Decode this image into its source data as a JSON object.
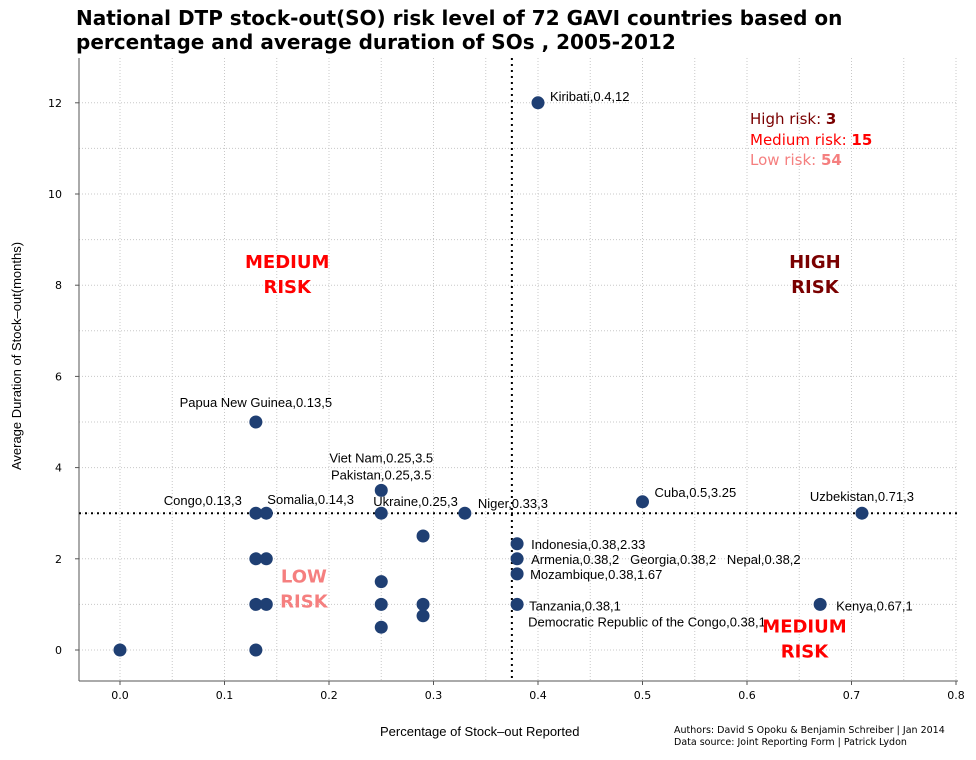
{
  "title_line1": "National DTP stock-out(SO) risk level of 72 GAVI countries based on",
  "title_line2": "percentage  and average duration of SOs , 2005-2012",
  "xlabel": "Percentage of Stock–out Reported",
  "ylabel": "Average Duration of Stock–out(months)",
  "credits": {
    "authors": "Authors: David S Opoku & Benjamin Schreiber | Jan 2014",
    "source": "Data source: Joint Reporting Form | Patrick Lydon"
  },
  "colors": {
    "point": "#1f3f73",
    "high": "#7a0000",
    "medium": "#ff0000",
    "low": "#f57f7f"
  },
  "summary": {
    "high_label": "High risk: ",
    "high_count": "3",
    "medium_label": "Medium risk: ",
    "medium_count": "15",
    "low_label": "Low risk: ",
    "low_count": "54"
  },
  "chart_data": {
    "type": "scatter",
    "xlim": [
      -0.04,
      0.8
    ],
    "ylim": [
      -0.7,
      13
    ],
    "xticks": [
      0.0,
      0.1,
      0.2,
      0.3,
      0.4,
      0.5,
      0.6,
      0.7,
      0.8
    ],
    "xtick_labels": [
      "0.0",
      "0.1",
      "0.2",
      "0.3",
      "0.4",
      "0.5",
      "0.6",
      "0.7",
      "0.8"
    ],
    "yticks": [
      0,
      2,
      4,
      6,
      8,
      10,
      12
    ],
    "ytick_labels": [
      "0",
      "2",
      "4",
      "6",
      "8",
      "10",
      "12"
    ],
    "grid": true,
    "threshold_x": 0.375,
    "threshold_y": 3,
    "points": [
      {
        "x": 0.0,
        "y": 0
      },
      {
        "x": 0.13,
        "y": 0
      },
      {
        "x": 0.13,
        "y": 1
      },
      {
        "x": 0.14,
        "y": 1
      },
      {
        "x": 0.13,
        "y": 2
      },
      {
        "x": 0.14,
        "y": 2
      },
      {
        "x": 0.13,
        "y": 3
      },
      {
        "x": 0.14,
        "y": 3
      },
      {
        "x": 0.13,
        "y": 5
      },
      {
        "x": 0.25,
        "y": 0.5
      },
      {
        "x": 0.25,
        "y": 1
      },
      {
        "x": 0.25,
        "y": 1.5
      },
      {
        "x": 0.25,
        "y": 3
      },
      {
        "x": 0.25,
        "y": 3.5
      },
      {
        "x": 0.29,
        "y": 0.75
      },
      {
        "x": 0.29,
        "y": 1
      },
      {
        "x": 0.29,
        "y": 2.5
      },
      {
        "x": 0.33,
        "y": 3
      },
      {
        "x": 0.38,
        "y": 1
      },
      {
        "x": 0.38,
        "y": 1.67
      },
      {
        "x": 0.38,
        "y": 2
      },
      {
        "x": 0.38,
        "y": 2.33
      },
      {
        "x": 0.4,
        "y": 12
      },
      {
        "x": 0.5,
        "y": 3.25
      },
      {
        "x": 0.67,
        "y": 1
      },
      {
        "x": 0.71,
        "y": 3
      }
    ],
    "point_labels": [
      {
        "text": "Kiribati,0.4,12",
        "x": 0.4,
        "y": 12,
        "anchor": "start",
        "dx": 12,
        "dy": -2
      },
      {
        "text": "Papua New Guinea,0.13,5",
        "x": 0.13,
        "y": 5,
        "anchor": "middle",
        "dx": 0,
        "dy": -15
      },
      {
        "text": "Viet Nam,0.25,3.5",
        "x": 0.25,
        "y": 3.5,
        "anchor": "middle",
        "dx": 0,
        "dy": -28
      },
      {
        "text": "Pakistan,0.25,3.5",
        "x": 0.25,
        "y": 3.5,
        "anchor": "middle",
        "dx": 0,
        "dy": -11
      },
      {
        "text": "Congo,0.13,3",
        "x": 0.13,
        "y": 3,
        "anchor": "end",
        "dx": -14,
        "dy": -8
      },
      {
        "text": "Somalia,0.14,3",
        "x": 0.14,
        "y": 3,
        "anchor": "start",
        "dx": 1,
        "dy": -9
      },
      {
        "text": "Ukraine,0.25,3",
        "x": 0.25,
        "y": 3,
        "anchor": "start",
        "dx": -8,
        "dy": -7
      },
      {
        "text": "Niger,0.33,3",
        "x": 0.33,
        "y": 3,
        "anchor": "start",
        "dx": 13,
        "dy": -5
      },
      {
        "text": "Cuba,0.5,3.25",
        "x": 0.5,
        "y": 3.25,
        "anchor": "start",
        "dx": 12,
        "dy": -5
      },
      {
        "text": "Uzbekistan,0.71,3",
        "x": 0.71,
        "y": 3,
        "anchor": "middle",
        "dx": 0,
        "dy": -12
      },
      {
        "text": "Indonesia,0.38,2.33",
        "x": 0.38,
        "y": 2.33,
        "anchor": "start",
        "dx": 14,
        "dy": 5
      },
      {
        "text": "Armenia,0.38,2   Georgia,0.38,2   Nepal,0.38,2",
        "x": 0.38,
        "y": 2,
        "anchor": "start",
        "dx": 14,
        "dy": 5
      },
      {
        "text": "Mozambique,0.38,1.67",
        "x": 0.38,
        "y": 1.67,
        "anchor": "start",
        "dx": 13,
        "dy": 5
      },
      {
        "text": "Tanzania,0.38,1",
        "x": 0.38,
        "y": 1,
        "anchor": "start",
        "dx": 12,
        "dy": 6
      },
      {
        "text": "Democratic Republic of the Congo,0.38,1",
        "x": 0.38,
        "y": 1,
        "anchor": "start",
        "dx": 11,
        "dy": 22
      },
      {
        "text": "Kenya,0.67,1",
        "x": 0.67,
        "y": 1,
        "anchor": "start",
        "dx": 16,
        "dy": 6
      }
    ],
    "zone_labels": [
      {
        "lines": [
          "MEDIUM",
          "RISK"
        ],
        "x": 0.16,
        "y": 8.25,
        "level": "medium"
      },
      {
        "lines": [
          "HIGH",
          "RISK"
        ],
        "x": 0.665,
        "y": 8.25,
        "level": "high"
      },
      {
        "lines": [
          "LOW",
          "RISK"
        ],
        "x": 0.176,
        "y": 1.35,
        "level": "low"
      },
      {
        "lines": [
          "MEDIUM",
          "RISK"
        ],
        "x": 0.655,
        "y": 0.25,
        "level": "medium"
      }
    ]
  }
}
